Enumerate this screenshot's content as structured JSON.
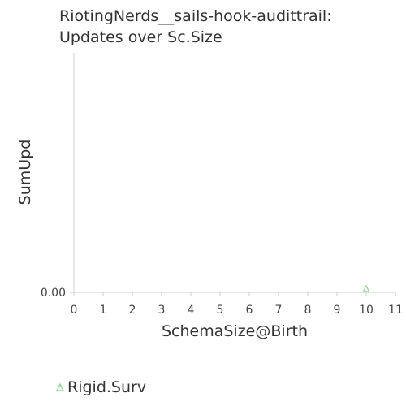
{
  "chart_data": {
    "type": "scatter",
    "title_lines": [
      "RiotingNerds__sails-hook-audittrail:",
      "Updates over Sc.Size"
    ],
    "xlabel": "SchemaSize@Birth",
    "ylabel": "SumUpd",
    "xlim": [
      0,
      11
    ],
    "x_ticks": [
      0,
      1,
      2,
      3,
      4,
      5,
      6,
      7,
      8,
      9,
      10,
      11
    ],
    "y_ticks": [
      {
        "value": 0,
        "label": "0.00"
      }
    ],
    "ylim": [
      0,
      1
    ],
    "grid": false,
    "legend_position": "bottom-left",
    "series": [
      {
        "name": "Rigid.Surv",
        "marker": "triangle",
        "color": "#8fd18f",
        "points": [
          {
            "x": 10,
            "y": 0
          }
        ]
      }
    ]
  }
}
